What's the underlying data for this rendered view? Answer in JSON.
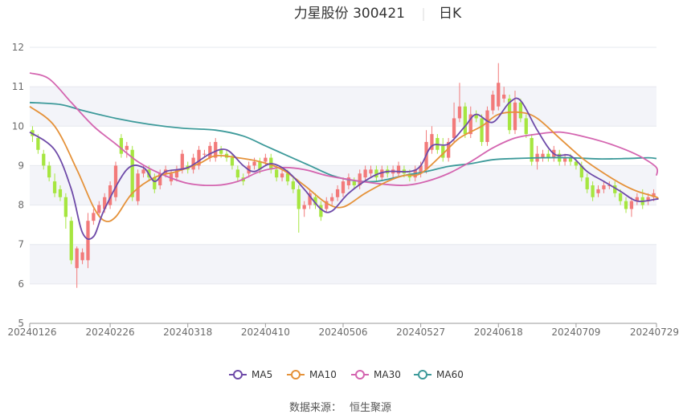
{
  "chart_data": {
    "type": "candlestick",
    "title": "力星股份 300421",
    "title_right": "日K",
    "source_label": "数据来源：",
    "source_value": "恒生聚源",
    "colors": {
      "up": "#f27a7a",
      "down": "#a6e640",
      "MA5": "#6e4aa8",
      "MA10": "#e5923a",
      "MA30": "#d465b0",
      "MA60": "#3d9a9a",
      "grid": "#e6e8ef",
      "band": "#f3f4f9",
      "axis_text": "#6b6b6b",
      "title_text": "#333333"
    },
    "ylim": [
      5,
      12
    ],
    "yticks": [
      5,
      6,
      7,
      8,
      9,
      10,
      11,
      12
    ],
    "legend": [
      "MA5",
      "MA10",
      "MA30",
      "MA60"
    ],
    "legend_position": "bottom",
    "x_ticks": [
      "20240126",
      "20240226",
      "20240318",
      "20240410",
      "20240506",
      "20240527",
      "20240618",
      "20240709",
      "20240729"
    ],
    "x_tick_index": [
      0,
      14,
      28,
      42,
      56,
      70,
      84,
      98,
      112
    ],
    "candles": [
      [
        9.9,
        9.75,
        10.0,
        9.6
      ],
      [
        9.7,
        9.4,
        9.8,
        9.3
      ],
      [
        9.3,
        9.0,
        9.4,
        8.9
      ],
      [
        9.0,
        8.7,
        9.1,
        8.6
      ],
      [
        8.6,
        8.3,
        8.8,
        8.2
      ],
      [
        8.4,
        8.2,
        8.5,
        8.1
      ],
      [
        8.2,
        7.7,
        8.3,
        7.4
      ],
      [
        7.6,
        6.6,
        7.7,
        6.5
      ],
      [
        6.4,
        6.9,
        6.95,
        5.9
      ],
      [
        6.6,
        6.8,
        6.9,
        6.5
      ],
      [
        6.6,
        7.6,
        7.8,
        6.4
      ],
      [
        7.6,
        7.8,
        7.9,
        7.5
      ],
      [
        7.8,
        8.0,
        8.1,
        7.7
      ],
      [
        7.9,
        8.2,
        8.3,
        7.8
      ],
      [
        8.0,
        8.5,
        8.6,
        7.9
      ],
      [
        8.2,
        9.0,
        9.1,
        8.1
      ],
      [
        9.7,
        9.3,
        9.8,
        9.2
      ],
      [
        9.4,
        9.5,
        9.6,
        9.2
      ],
      [
        9.4,
        8.2,
        9.5,
        8.1
      ],
      [
        8.1,
        8.8,
        8.9,
        8.0
      ],
      [
        8.8,
        8.9,
        9.0,
        8.7
      ],
      [
        8.9,
        8.7,
        9.0,
        8.6
      ],
      [
        8.7,
        8.4,
        8.8,
        8.3
      ],
      [
        8.5,
        8.8,
        8.9,
        8.4
      ],
      [
        8.8,
        8.9,
        9.0,
        8.7
      ],
      [
        8.6,
        8.8,
        8.9,
        8.5
      ],
      [
        8.7,
        8.9,
        9.0,
        8.6
      ],
      [
        8.9,
        9.3,
        9.4,
        8.8
      ],
      [
        9.0,
        8.9,
        9.1,
        8.8
      ],
      [
        8.9,
        9.2,
        9.3,
        8.8
      ],
      [
        9.0,
        9.4,
        9.5,
        8.9
      ],
      [
        9.3,
        9.3,
        9.4,
        9.2
      ],
      [
        9.2,
        9.5,
        9.6,
        9.1
      ],
      [
        9.2,
        9.6,
        9.7,
        9.1
      ],
      [
        9.4,
        9.3,
        9.5,
        9.2
      ],
      [
        9.3,
        9.2,
        9.4,
        9.1
      ],
      [
        9.2,
        9.0,
        9.3,
        8.9
      ],
      [
        8.9,
        8.7,
        9.0,
        8.6
      ],
      [
        8.7,
        8.6,
        8.8,
        8.5
      ],
      [
        8.8,
        9.0,
        9.1,
        8.7
      ],
      [
        9.0,
        9.1,
        9.2,
        8.9
      ],
      [
        9.1,
        8.9,
        9.2,
        8.8
      ],
      [
        9.1,
        9.2,
        9.3,
        9.0
      ],
      [
        9.2,
        8.9,
        9.3,
        8.8
      ],
      [
        8.9,
        8.7,
        9.0,
        8.6
      ],
      [
        8.7,
        8.8,
        8.9,
        8.6
      ],
      [
        8.8,
        8.6,
        8.9,
        8.5
      ],
      [
        8.6,
        8.4,
        8.7,
        8.3
      ],
      [
        8.4,
        7.9,
        8.5,
        7.3
      ],
      [
        7.9,
        8.0,
        8.1,
        7.7
      ],
      [
        8.0,
        8.3,
        8.4,
        7.9
      ],
      [
        8.2,
        8.0,
        8.3,
        7.9
      ],
      [
        8.0,
        7.7,
        8.1,
        7.6
      ],
      [
        7.9,
        8.1,
        8.2,
        7.8
      ],
      [
        8.1,
        8.2,
        8.3,
        8.0
      ],
      [
        8.2,
        8.4,
        8.5,
        8.1
      ],
      [
        8.3,
        8.6,
        8.7,
        8.2
      ],
      [
        8.5,
        8.7,
        8.8,
        8.4
      ],
      [
        8.6,
        8.5,
        8.7,
        8.4
      ],
      [
        8.5,
        8.8,
        8.9,
        8.4
      ],
      [
        8.7,
        8.9,
        9.0,
        8.6
      ],
      [
        8.8,
        8.9,
        9.0,
        8.7
      ],
      [
        8.9,
        8.7,
        9.0,
        8.6
      ],
      [
        8.7,
        8.9,
        9.0,
        8.6
      ],
      [
        8.9,
        8.8,
        9.0,
        8.7
      ],
      [
        8.8,
        8.9,
        9.0,
        8.7
      ],
      [
        8.8,
        9.0,
        9.1,
        8.7
      ],
      [
        8.9,
        8.8,
        9.0,
        8.7
      ],
      [
        8.8,
        8.7,
        8.9,
        8.6
      ],
      [
        8.7,
        8.9,
        9.0,
        8.6
      ],
      [
        8.8,
        9.0,
        9.1,
        8.7
      ],
      [
        8.9,
        9.6,
        9.9,
        8.8
      ],
      [
        9.4,
        9.8,
        10.0,
        9.3
      ],
      [
        9.7,
        9.4,
        9.8,
        9.3
      ],
      [
        9.5,
        9.2,
        9.7,
        9.1
      ],
      [
        9.2,
        9.6,
        9.7,
        9.1
      ],
      [
        9.7,
        10.2,
        10.6,
        9.6
      ],
      [
        10.2,
        10.5,
        11.1,
        10.1
      ],
      [
        10.5,
        9.8,
        10.6,
        9.7
      ],
      [
        9.8,
        10.3,
        10.5,
        9.7
      ],
      [
        10.3,
        10.2,
        10.4,
        10.1
      ],
      [
        10.2,
        9.6,
        10.3,
        9.5
      ],
      [
        9.6,
        10.4,
        10.5,
        9.5
      ],
      [
        10.4,
        10.8,
        10.9,
        10.3
      ],
      [
        10.5,
        11.1,
        11.6,
        10.4
      ],
      [
        10.7,
        10.8,
        11.0,
        10.6
      ],
      [
        10.7,
        9.9,
        10.8,
        9.8
      ],
      [
        9.9,
        10.6,
        10.9,
        9.8
      ],
      [
        10.6,
        10.2,
        10.7,
        10.1
      ],
      [
        10.2,
        9.8,
        10.3,
        9.7
      ],
      [
        9.7,
        9.1,
        9.8,
        9.0
      ],
      [
        9.1,
        9.3,
        9.5,
        8.9
      ],
      [
        9.2,
        9.3,
        9.4,
        9.1
      ],
      [
        9.3,
        9.2,
        9.4,
        9.1
      ],
      [
        9.2,
        9.4,
        9.5,
        9.1
      ],
      [
        9.3,
        9.1,
        9.4,
        9.0
      ],
      [
        9.1,
        9.2,
        9.3,
        9.0
      ],
      [
        9.2,
        9.1,
        9.3,
        9.0
      ],
      [
        9.1,
        9.0,
        9.2,
        8.9
      ],
      [
        9.0,
        8.7,
        9.1,
        8.6
      ],
      [
        8.7,
        8.4,
        8.8,
        8.3
      ],
      [
        8.5,
        8.2,
        8.6,
        8.1
      ],
      [
        8.3,
        8.4,
        8.5,
        8.2
      ],
      [
        8.4,
        8.5,
        8.6,
        8.3
      ],
      [
        8.5,
        8.5,
        8.6,
        8.4
      ],
      [
        8.5,
        8.3,
        8.6,
        8.2
      ],
      [
        8.3,
        8.1,
        8.4,
        8.0
      ],
      [
        8.1,
        7.9,
        8.2,
        7.8
      ],
      [
        7.9,
        8.1,
        8.2,
        7.7
      ],
      [
        8.1,
        8.2,
        8.3,
        8.0
      ],
      [
        8.2,
        8.0,
        8.4,
        7.9
      ],
      [
        8.1,
        8.2,
        8.3,
        8.0
      ],
      [
        8.2,
        8.3,
        8.4,
        8.1
      ]
    ],
    "ma": {
      "MA5": [
        [
          0,
          9.85
        ],
        [
          4,
          9.4
        ],
        [
          7,
          8.4
        ],
        [
          9,
          7.3
        ],
        [
          11,
          7.2
        ],
        [
          13,
          7.9
        ],
        [
          17,
          8.9
        ],
        [
          20,
          8.95
        ],
        [
          22,
          8.6
        ],
        [
          24,
          8.85
        ],
        [
          28,
          8.95
        ],
        [
          32,
          9.3
        ],
        [
          35,
          9.4
        ],
        [
          38,
          9.0
        ],
        [
          40,
          8.85
        ],
        [
          43,
          9.05
        ],
        [
          46,
          8.85
        ],
        [
          49,
          8.4
        ],
        [
          52,
          7.9
        ],
        [
          54,
          7.85
        ],
        [
          57,
          8.3
        ],
        [
          61,
          8.7
        ],
        [
          64,
          8.85
        ],
        [
          68,
          8.85
        ],
        [
          70,
          9.0
        ],
        [
          72,
          9.5
        ],
        [
          75,
          9.55
        ],
        [
          78,
          10.0
        ],
        [
          80,
          10.3
        ],
        [
          83,
          10.1
        ],
        [
          86,
          10.6
        ],
        [
          88,
          10.65
        ],
        [
          91,
          9.9
        ],
        [
          94,
          9.3
        ],
        [
          97,
          9.25
        ],
        [
          100,
          8.85
        ],
        [
          103,
          8.6
        ],
        [
          106,
          8.35
        ],
        [
          109,
          8.1
        ],
        [
          112,
          8.15
        ],
        [
          114,
          8.15
        ]
      ],
      "MA10": [
        [
          0,
          10.5
        ],
        [
          4,
          10.0
        ],
        [
          8,
          8.9
        ],
        [
          11,
          7.95
        ],
        [
          13,
          7.6
        ],
        [
          15,
          7.7
        ],
        [
          18,
          8.3
        ],
        [
          22,
          8.7
        ],
        [
          26,
          8.85
        ],
        [
          30,
          9.05
        ],
        [
          33,
          9.25
        ],
        [
          37,
          9.2
        ],
        [
          41,
          9.1
        ],
        [
          45,
          8.9
        ],
        [
          49,
          8.5
        ],
        [
          53,
          8.05
        ],
        [
          56,
          7.95
        ],
        [
          60,
          8.3
        ],
        [
          64,
          8.6
        ],
        [
          67,
          8.75
        ],
        [
          70,
          8.8
        ],
        [
          74,
          9.3
        ],
        [
          77,
          9.7
        ],
        [
          81,
          10.0
        ],
        [
          84,
          10.3
        ],
        [
          88,
          10.35
        ],
        [
          91,
          10.2
        ],
        [
          95,
          9.7
        ],
        [
          99,
          9.2
        ],
        [
          102,
          8.9
        ],
        [
          106,
          8.55
        ],
        [
          109,
          8.35
        ],
        [
          112,
          8.2
        ],
        [
          114,
          8.15
        ]
      ],
      "MA30": [
        [
          0,
          11.35
        ],
        [
          3,
          11.2
        ],
        [
          7,
          10.6
        ],
        [
          11,
          10.0
        ],
        [
          15,
          9.55
        ],
        [
          19,
          9.1
        ],
        [
          23,
          8.8
        ],
        [
          28,
          8.55
        ],
        [
          33,
          8.5
        ],
        [
          37,
          8.6
        ],
        [
          41,
          8.85
        ],
        [
          45,
          8.95
        ],
        [
          49,
          8.9
        ],
        [
          53,
          8.75
        ],
        [
          57,
          8.65
        ],
        [
          62,
          8.55
        ],
        [
          67,
          8.5
        ],
        [
          71,
          8.6
        ],
        [
          75,
          8.8
        ],
        [
          79,
          9.1
        ],
        [
          83,
          9.45
        ],
        [
          87,
          9.7
        ],
        [
          91,
          9.8
        ],
        [
          95,
          9.85
        ],
        [
          99,
          9.75
        ],
        [
          103,
          9.6
        ],
        [
          107,
          9.4
        ],
        [
          110,
          9.2
        ],
        [
          112,
          8.95
        ],
        [
          114,
          8.75
        ]
      ],
      "MA60": [
        [
          0,
          10.6
        ],
        [
          5,
          10.55
        ],
        [
          9,
          10.4
        ],
        [
          15,
          10.2
        ],
        [
          21,
          10.05
        ],
        [
          27,
          9.95
        ],
        [
          33,
          9.9
        ],
        [
          38,
          9.75
        ],
        [
          42,
          9.5
        ],
        [
          46,
          9.25
        ],
        [
          50,
          9.0
        ],
        [
          54,
          8.75
        ],
        [
          58,
          8.62
        ],
        [
          62,
          8.6
        ],
        [
          67,
          8.75
        ],
        [
          71,
          8.85
        ],
        [
          75,
          8.98
        ],
        [
          79,
          9.05
        ],
        [
          83,
          9.15
        ],
        [
          87,
          9.18
        ],
        [
          92,
          9.2
        ],
        [
          97,
          9.2
        ],
        [
          102,
          9.17
        ],
        [
          107,
          9.18
        ],
        [
          111,
          9.2
        ],
        [
          114,
          9.18
        ]
      ]
    }
  }
}
